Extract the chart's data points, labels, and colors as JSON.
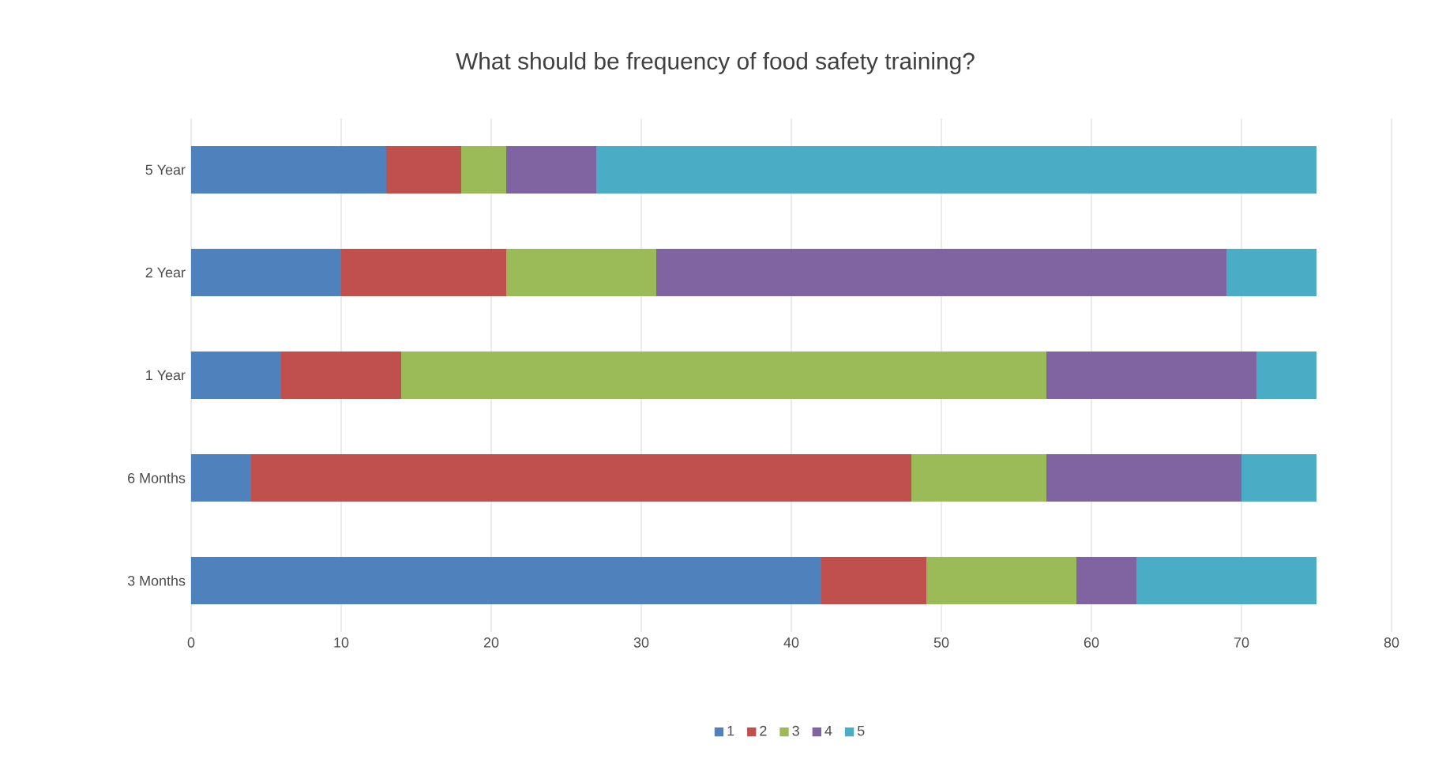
{
  "chart_data": {
    "type": "bar",
    "orientation": "horizontal",
    "stacked": true,
    "title": "What should be frequency of food safety training?",
    "categories": [
      "5 Year",
      "2 Year",
      "1 Year",
      "6 Months",
      "3 Months"
    ],
    "series": [
      {
        "name": "1",
        "color": "#4f81bd",
        "values": [
          13,
          10,
          6,
          4,
          42
        ]
      },
      {
        "name": "2",
        "color": "#c0504d",
        "values": [
          5,
          11,
          8,
          44,
          7
        ]
      },
      {
        "name": "3",
        "color": "#9bbb59",
        "values": [
          3,
          10,
          43,
          9,
          10
        ]
      },
      {
        "name": "4",
        "color": "#8064a2",
        "values": [
          6,
          38,
          14,
          13,
          4
        ]
      },
      {
        "name": "5",
        "color": "#4bacc6",
        "values": [
          48,
          6,
          4,
          5,
          12
        ]
      }
    ],
    "xlim": [
      0,
      80
    ],
    "xticks": [
      0,
      10,
      20,
      30,
      40,
      50,
      60,
      70,
      80
    ],
    "grid": "x",
    "legend": "bottom"
  }
}
